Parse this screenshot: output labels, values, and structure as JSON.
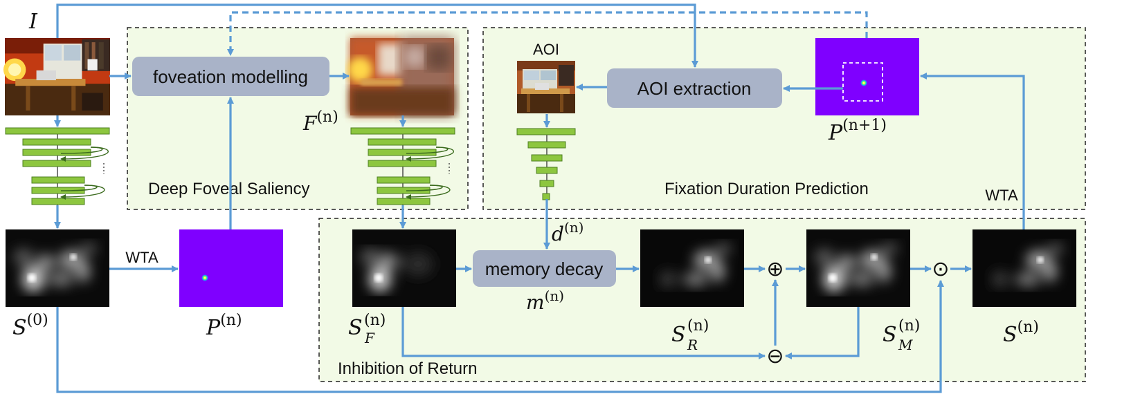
{
  "sections": {
    "deep_foveal_saliency": "Deep Foveal Saliency",
    "fixation_duration_prediction": "Fixation Duration Prediction",
    "inhibition_of_return": "Inhibition of Return"
  },
  "blocks": {
    "foveation": "foveation modelling",
    "aoi_extraction": "AOI extraction",
    "memory_decay": "memory decay"
  },
  "labels": {
    "aoi": "AOI",
    "wta_left": "WTA",
    "wta_right": "WTA"
  },
  "symbols": {
    "image": {
      "base": "I"
    },
    "foveated": {
      "base": "F",
      "sup": "(n)"
    },
    "s0": {
      "base": "S",
      "sup": "(0)"
    },
    "pn": {
      "base": "P",
      "sup": "(n)"
    },
    "pn1": {
      "base": "P",
      "sup": "(n+1)"
    },
    "sf": {
      "base": "S",
      "sup": "(n)",
      "sub": "F"
    },
    "sr": {
      "base": "S",
      "sup": "(n)",
      "sub": "R"
    },
    "sm": {
      "base": "S",
      "sup": "(n)",
      "sub": "M"
    },
    "sn": {
      "base": "S",
      "sup": "(n)"
    },
    "dn": {
      "base": "d",
      "sup": "(n)"
    },
    "mn": {
      "base": "m",
      "sup": "(n)"
    }
  },
  "operators": {
    "plus": "⊕",
    "minus": "⊖",
    "dot": "⊙"
  },
  "colors": {
    "arrow": "#5b9bd5",
    "panel_fill": "#f2fae6",
    "block_fill": "#a9b3c8",
    "layer_fill": "#8dc63f",
    "layer_stroke": "#4d7f22",
    "loop_stroke": "#3b6b1e",
    "prob_map": "#7f00ff"
  }
}
